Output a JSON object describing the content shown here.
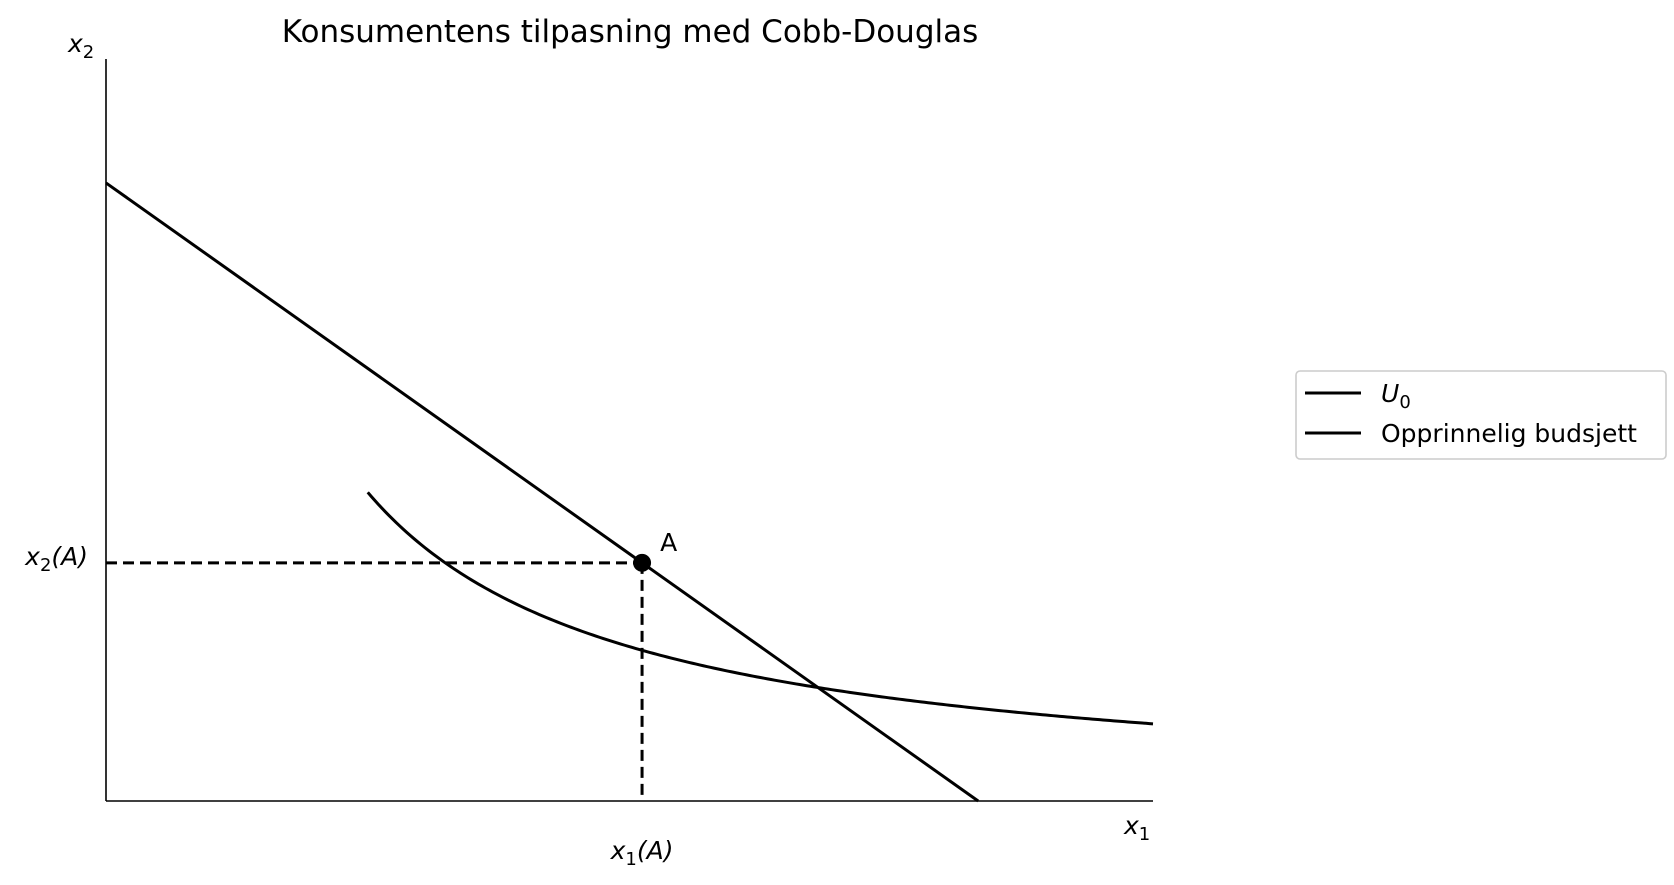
{
  "chart_data": {
    "type": "line",
    "title": "Konsumentens tilpasning med Cobb-Douglas",
    "xlabel": "x",
    "xlabel_sub": "1",
    "ylabel": "x",
    "ylabel_sub": "2",
    "xlim": [
      0,
      10
    ],
    "ylim": [
      0,
      10
    ],
    "grid": false,
    "legend_placement": "right, outside plot",
    "series": [
      {
        "name": "U",
        "name_sub": "0",
        "kind": "indifference curve",
        "form": "x2 = k / x1",
        "k": 10.4,
        "x_start": 2.5,
        "x_end": 10,
        "color": "#000000"
      },
      {
        "name": "Opprinnelig budsjett",
        "kind": "budget line",
        "intercept_y": 8.33,
        "intercept_x": 8.33,
        "color": "#000000"
      }
    ],
    "point": {
      "label": "A",
      "x": 5.12,
      "y": 3.21
    },
    "tick_labels": {
      "x": {
        "base": "x",
        "sub": "1",
        "suffix": "(A)"
      },
      "y": {
        "base": "x",
        "sub": "2",
        "suffix": "(A)"
      }
    }
  }
}
